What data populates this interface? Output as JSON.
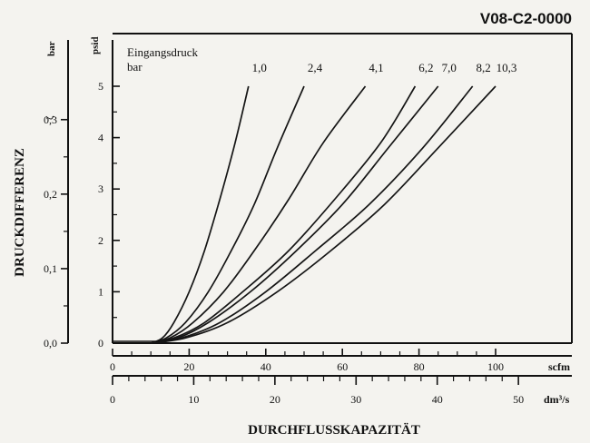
{
  "chart_data": {
    "type": "line",
    "title": "V08-C2-0000",
    "ylabel": "DRUCKDIFFERENZ",
    "xlabel": "DURCHFLUSSKAPAZITÄT",
    "legend_title": "Eingangsdruck",
    "legend_unit": "bar",
    "y_axis_psid": {
      "unit": "psid",
      "ticks": [
        "0",
        "1",
        "2",
        "3",
        "4",
        "5"
      ],
      "range": [
        0,
        5
      ]
    },
    "y_axis_bar": {
      "unit": "bar",
      "ticks": [
        "0,0",
        "0,1",
        "0,2",
        "0,3"
      ],
      "range": [
        0,
        0.3448
      ]
    },
    "x_axis_scfm": {
      "unit": "scfm",
      "ticks": [
        "0",
        "20",
        "40",
        "60",
        "80",
        "100"
      ],
      "range": [
        0,
        100
      ]
    },
    "x_axis_dm3s": {
      "unit": "dm³/s",
      "ticks": [
        "0",
        "10",
        "20",
        "30",
        "40",
        "50"
      ],
      "range": [
        0,
        47.19
      ]
    },
    "grid": false,
    "series": [
      {
        "name": "1,0",
        "x": [
          10,
          13,
          16,
          20,
          24,
          28,
          32,
          35.5
        ],
        "y": [
          0,
          0.1,
          0.4,
          1.0,
          1.8,
          2.8,
          3.9,
          5.0
        ]
      },
      {
        "name": "2,4",
        "x": [
          10,
          14,
          19,
          25,
          31,
          37,
          43,
          50
        ],
        "y": [
          0,
          0.1,
          0.4,
          1.0,
          1.8,
          2.7,
          3.8,
          5.0
        ]
      },
      {
        "name": "4,1",
        "x": [
          10,
          15,
          21,
          29,
          37,
          46,
          55,
          66
        ],
        "y": [
          0,
          0.1,
          0.4,
          1.0,
          1.8,
          2.8,
          3.9,
          5.0
        ]
      },
      {
        "name": "6,2",
        "x": [
          10,
          16,
          24,
          34,
          46,
          58,
          70,
          79
        ],
        "y": [
          0,
          0.1,
          0.4,
          1.0,
          1.8,
          2.8,
          3.9,
          5.0
        ]
      },
      {
        "name": "7,0",
        "x": [
          10,
          17,
          25,
          36,
          48,
          60,
          72,
          85
        ],
        "y": [
          0,
          0.1,
          0.4,
          1.0,
          1.8,
          2.7,
          3.8,
          5.0
        ]
      },
      {
        "name": "8,2",
        "x": [
          10,
          18,
          28,
          40,
          53,
          67,
          81,
          94
        ],
        "y": [
          0,
          0.1,
          0.4,
          1.0,
          1.8,
          2.7,
          3.8,
          5.0
        ]
      },
      {
        "name": "10,3",
        "x": [
          10,
          19,
          30,
          43,
          57,
          71,
          85,
          100
        ],
        "y": [
          0,
          0.1,
          0.4,
          1.0,
          1.8,
          2.7,
          3.8,
          5.0
        ]
      }
    ]
  }
}
